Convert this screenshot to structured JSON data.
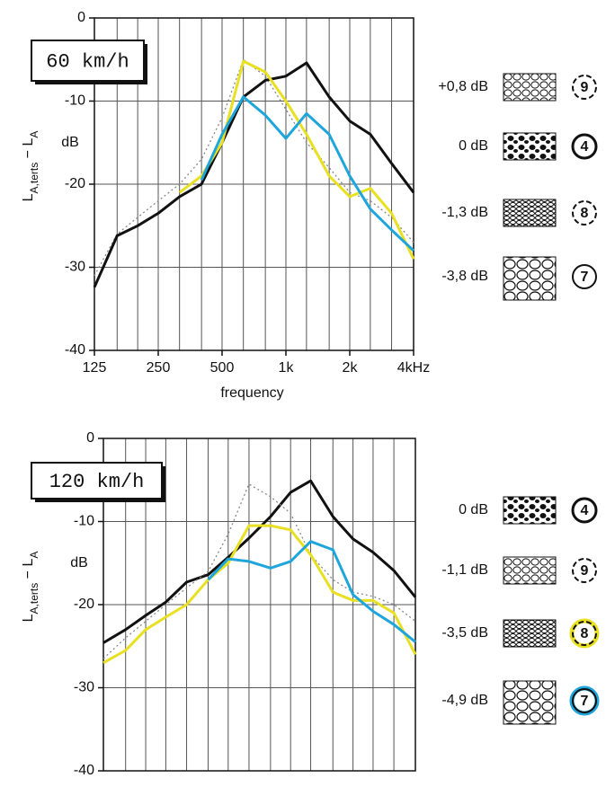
{
  "chart_data": [
    {
      "type": "line",
      "title": "60 km/h",
      "xlabel": "frequency",
      "ylabel": [
        "L",
        "A,terts",
        " − L",
        "A"
      ],
      "y_unit": "dB",
      "log_x": true,
      "xlim": [
        125,
        4000
      ],
      "ylim": [
        -40,
        0
      ],
      "grid": true,
      "xticks": [
        125,
        250,
        500,
        {
          "value": 1000,
          "label": "1k"
        },
        {
          "value": 2000,
          "label": "2k"
        },
        {
          "value": 4000,
          "label": "4kHz"
        }
      ],
      "xgrid": [
        125,
        160,
        200,
        250,
        315,
        400,
        500,
        630,
        800,
        1000,
        1250,
        1600,
        2000,
        2500,
        3150,
        4000
      ],
      "yticks": [
        0,
        -10,
        -20,
        -30,
        -40
      ],
      "x": [
        125,
        160,
        200,
        250,
        315,
        400,
        500,
        630,
        800,
        1000,
        1250,
        1600,
        2000,
        2500,
        3150,
        4000
      ],
      "series": [
        {
          "name": "+0,8 dB",
          "marker": "9",
          "color": "#888888",
          "dash": "dotted",
          "ring_dash": true,
          "values": [
            -31,
            -26,
            -24,
            -22,
            -20,
            -17,
            -12,
            -5,
            -7,
            -11,
            -15,
            -18,
            -21,
            -22,
            -24,
            -27
          ]
        },
        {
          "name": "0 dB",
          "marker": "4",
          "color": "#111111",
          "values": [
            -32.4,
            -26.2,
            -25,
            -23.5,
            -21.5,
            -20,
            -15,
            -9.5,
            -7.5,
            -7,
            -5.4,
            -9.5,
            -12.4,
            -14,
            -17.5,
            -21
          ]
        },
        {
          "name": "-1,3 dB",
          "marker": "8",
          "color": "#e8e020",
          "ring_dash": true,
          "values": [
            null,
            null,
            null,
            null,
            -21,
            -19,
            -15,
            -5.2,
            -6.5,
            -10,
            -14,
            -19,
            -21.5,
            -20.5,
            -23.5,
            -29
          ]
        },
        {
          "name": "-3,8 dB",
          "marker": "7",
          "color": "#1ea6dc",
          "values": [
            null,
            null,
            null,
            null,
            null,
            -19.5,
            -14,
            -9.5,
            -11.7,
            -14.5,
            -11.5,
            -14,
            -19,
            -23,
            -25.5,
            -28
          ]
        }
      ]
    },
    {
      "type": "line",
      "title": "120 km/h",
      "ylabel": [
        "L",
        "A,terts",
        " − L",
        "A"
      ],
      "y_unit": "dB",
      "log_x": true,
      "xlim": [
        125,
        4000
      ],
      "ylim": [
        -40,
        0
      ],
      "grid": true,
      "xgrid": [
        125,
        160,
        200,
        250,
        315,
        400,
        500,
        630,
        800,
        1000,
        1250,
        1600,
        2000,
        2500,
        3150,
        4000
      ],
      "yticks": [
        0,
        -10,
        -20,
        -30,
        -40
      ],
      "x": [
        125,
        160,
        200,
        250,
        315,
        400,
        500,
        630,
        800,
        1000,
        1250,
        1600,
        2000,
        2500,
        3150,
        4000
      ],
      "series": [
        {
          "name": "0 dB",
          "marker": "4",
          "color": "#111111",
          "values": [
            -24.6,
            -23,
            -21.3,
            -19.7,
            -17.3,
            -16.4,
            -14.3,
            -12,
            -9.4,
            -6.5,
            -5.1,
            -9.4,
            -12.1,
            -13.7,
            -15.9,
            -19.1
          ]
        },
        {
          "name": "-1,1 dB",
          "marker": "9",
          "color": "#888888",
          "dash": "dotted",
          "ring_dash": true,
          "values": [
            -26.5,
            -24,
            -22,
            -20,
            -18,
            -16,
            -11.5,
            -5.5,
            -7,
            -9,
            -14,
            -17,
            -18.5,
            -19,
            -20,
            -22
          ]
        },
        {
          "name": "-3,5 dB",
          "marker": "8",
          "color": "#e8e020",
          "ring_dash": true,
          "ring_color": "#e8e020",
          "values": [
            -27,
            -25.5,
            -23,
            -21.5,
            -20,
            -17,
            -15,
            -10.5,
            -10.5,
            -11,
            -14,
            -18.5,
            -19.5,
            -19.5,
            -21,
            -26
          ]
        },
        {
          "name": "-4,9 dB",
          "marker": "7",
          "color": "#1ea6dc",
          "ring_color": "#1ea6dc",
          "values": [
            null,
            null,
            null,
            null,
            null,
            -17,
            -14.5,
            -14.8,
            -15.6,
            -14.8,
            -12.4,
            -13.4,
            -18.8,
            -20.8,
            -22.4,
            -24.5
          ]
        }
      ]
    }
  ]
}
